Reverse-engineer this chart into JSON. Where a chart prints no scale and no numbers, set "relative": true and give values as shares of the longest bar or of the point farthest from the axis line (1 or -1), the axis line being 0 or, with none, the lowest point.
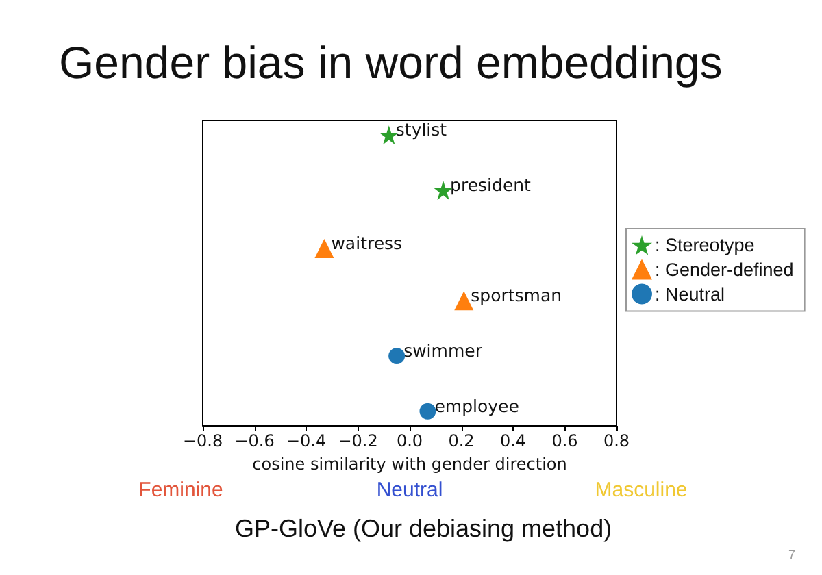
{
  "chart_data": {
    "type": "scatter",
    "title": "Gender bias in word embeddings",
    "xlabel": "cosine similarity with gender direction",
    "relative": true,
    "xlim": [
      -0.8,
      0.8
    ],
    "xticks": [
      {
        "value": -0.8,
        "label": "−0.8"
      },
      {
        "value": -0.6,
        "label": "−0.6"
      },
      {
        "value": -0.4,
        "label": "−0.4"
      },
      {
        "value": -0.2,
        "label": "−0.2"
      },
      {
        "value": 0,
        "label": "0.0"
      },
      0.2,
      0.4,
      0.6,
      0.8
    ],
    "tick_labels": "x",
    "grid": false,
    "legend": "right",
    "series": [
      {
        "name": ": Stereotype",
        "color": "#2ca02c",
        "marker": "star",
        "x": [
          -0.08,
          0.13
        ],
        "values": [
          1,
          0.81
        ]
      },
      {
        "name": ": Gender-defined",
        "color": "#ff7f0e",
        "marker": "triangle",
        "x": [
          -0.33,
          0.21
        ],
        "values": [
          0.61,
          0.43
        ]
      },
      {
        "name": ": Neutral",
        "color": "#1f77b4",
        "marker": "circle",
        "x": [
          -0.05,
          0.07
        ],
        "values": [
          0.24,
          0.05
        ]
      }
    ],
    "annotations": [
      {
        "text": "stylist",
        "x": -0.08,
        "y": 1
      },
      {
        "text": "president",
        "x": 0.13,
        "y": 0.81
      },
      {
        "text": "waitress",
        "x": -0.33,
        "y": 0.61
      },
      {
        "text": "sportsman",
        "x": 0.21,
        "y": 0.43
      },
      {
        "text": "swimmer",
        "x": -0.05,
        "y": 0.24
      },
      {
        "text": "employee",
        "x": 0.07,
        "y": 0.05
      },
      "Feminine",
      "Neutral",
      "Masculine",
      "GP-GloVe (Our debiasing method)",
      "7"
    ]
  }
}
